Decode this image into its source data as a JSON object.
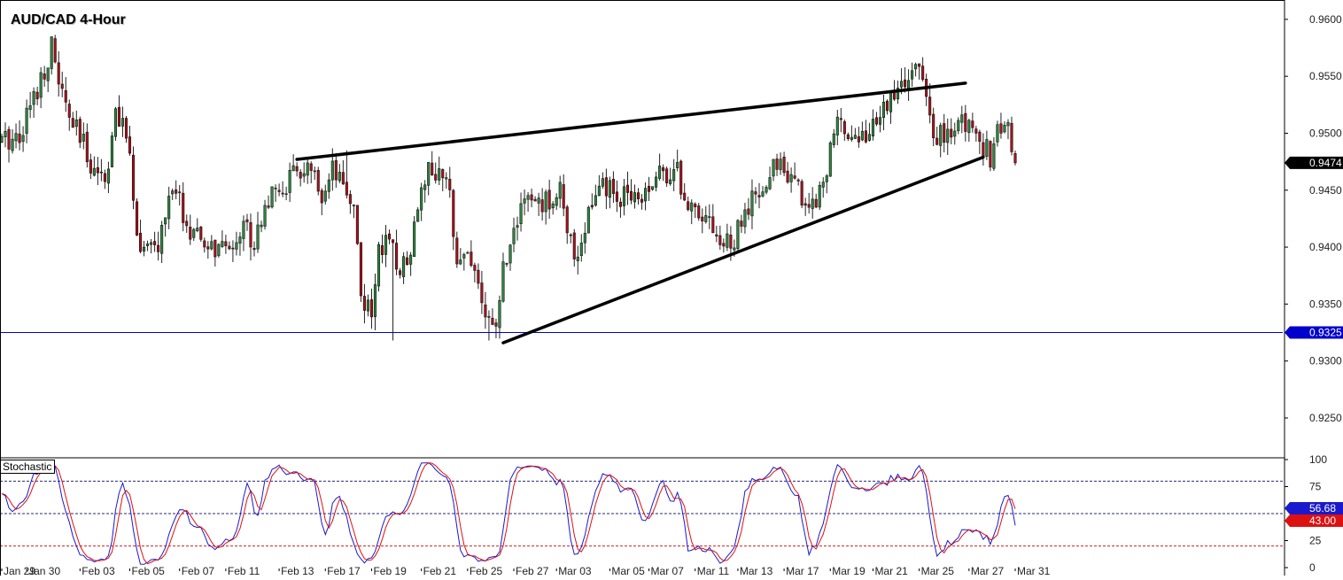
{
  "chart_data": [
    {
      "type": "candlestick",
      "title": "AUD/CAD 4-Hour",
      "y_ticks": [
        "0.9600",
        "0.9550",
        "0.9500",
        "0.9450",
        "0.9400",
        "0.9350",
        "0.9300",
        "0.9250"
      ],
      "ylim": [
        0.9215,
        0.9617
      ],
      "x_tick_labels": [
        "Jan 29",
        "Jan 30",
        "Feb 03",
        "Feb 05",
        "Feb 07",
        "Feb 11",
        "Feb 13",
        "Feb 17",
        "Feb 19",
        "Feb 21",
        "Feb 25",
        "Feb 27",
        "Mar 03",
        "Mar 05",
        "Mar 07",
        "Mar 11",
        "Mar 13",
        "Mar 17",
        "Mar 19",
        "Mar 21",
        "Mar 25",
        "Mar 27",
        "Mar 31"
      ],
      "current_price": {
        "value": 0.9474,
        "label": "0.9474",
        "color": "#000000"
      },
      "support_level": {
        "value": 0.9325,
        "label": "0.9325",
        "color": "#0000cc"
      },
      "trendlines": [
        {
          "name": "upper",
          "start": {
            "bar": 83,
            "price": 0.9477
          },
          "end": {
            "bar": 271,
            "price": 0.9544
          }
        },
        {
          "name": "lower",
          "start": {
            "bar": 141,
            "price": 0.9316
          },
          "end": {
            "bar": 276,
            "price": 0.9479
          }
        }
      ],
      "bull_color": "#2b8a3e",
      "bear_color": "#b0101a",
      "grid": false
    },
    {
      "type": "line",
      "title": "Stochastic",
      "y_ticks": [
        "100",
        "75",
        "25",
        "0"
      ],
      "ylim": [
        0,
        100
      ],
      "levels": [
        {
          "value": 80,
          "color": "#2a2a7a"
        },
        {
          "value": 50,
          "color": "#2a2a7a"
        },
        {
          "value": 20,
          "color": "#cc2020"
        }
      ],
      "series": [
        {
          "label": "56.68",
          "color": "#1a1acc",
          "label_bg": "#1a1acc"
        },
        {
          "label": "43.00",
          "color": "#dd1111",
          "label_bg": "#dd1111"
        }
      ]
    }
  ]
}
